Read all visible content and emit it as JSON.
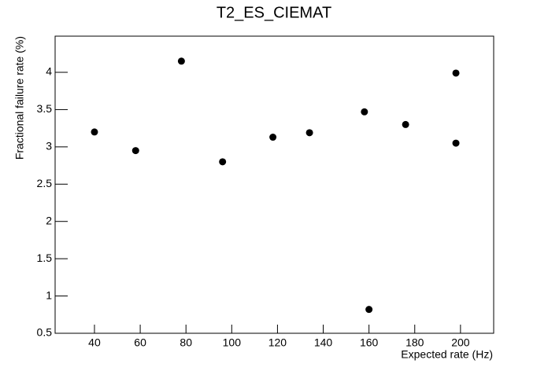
{
  "chart_data": {
    "type": "scatter",
    "title": "T2_ES_CIEMAT",
    "x_label": "Expected rate (Hz)",
    "y_label": "Fractional failure rate (%)",
    "x": [
      40,
      58,
      78,
      96,
      118,
      134,
      158,
      160,
      176,
      198,
      198
    ],
    "values": [
      3.2,
      2.95,
      4.15,
      2.8,
      3.13,
      3.19,
      3.47,
      0.82,
      3.3,
      3.99,
      3.05
    ],
    "color": "#000000",
    "xlim": [
      22.8,
      214.5
    ],
    "xticks": [
      40,
      60,
      80,
      100,
      120,
      140,
      160,
      180,
      200
    ],
    "ylim": [
      0.5,
      4.485
    ],
    "yticks": [
      0.5,
      1,
      1.5,
      2,
      2.5,
      3,
      3.5,
      4
    ]
  }
}
